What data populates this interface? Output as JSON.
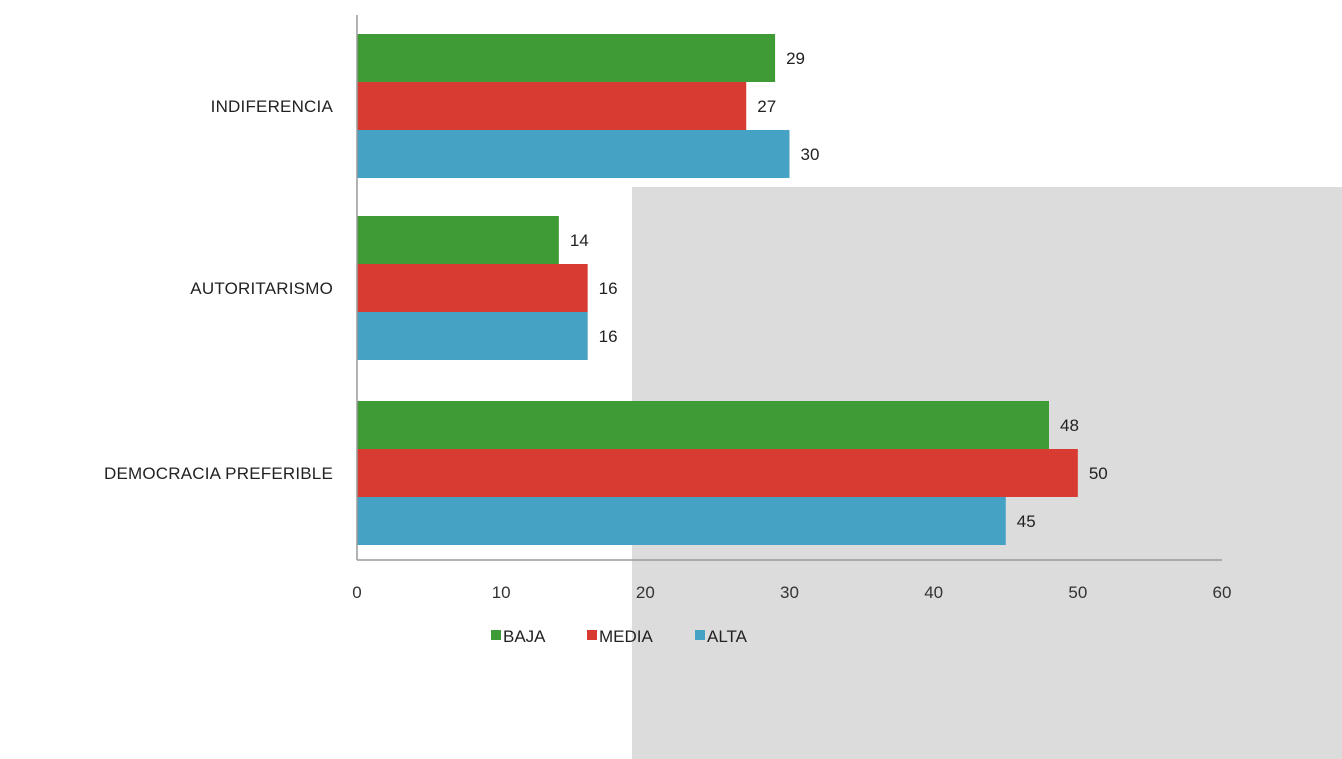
{
  "chart_data": {
    "type": "bar",
    "orientation": "horizontal",
    "categories": [
      "INDIFERENCIA",
      "AUTORITARISMO",
      "DEMOCRACIA PREFERIBLE"
    ],
    "series": [
      {
        "name": "BAJA",
        "color": "#3e9b36",
        "values": [
          29,
          14,
          48
        ]
      },
      {
        "name": "MEDIA",
        "color": "#d83b32",
        "values": [
          27,
          16,
          50
        ]
      },
      {
        "name": "ALTA",
        "color": "#45a2c4",
        "values": [
          30,
          16,
          45
        ]
      }
    ],
    "xlim": [
      0,
      60
    ],
    "xticks": [
      "0",
      "10",
      "20",
      "30",
      "40",
      "50",
      "60"
    ],
    "legend_position": "bottom",
    "grid": false
  }
}
